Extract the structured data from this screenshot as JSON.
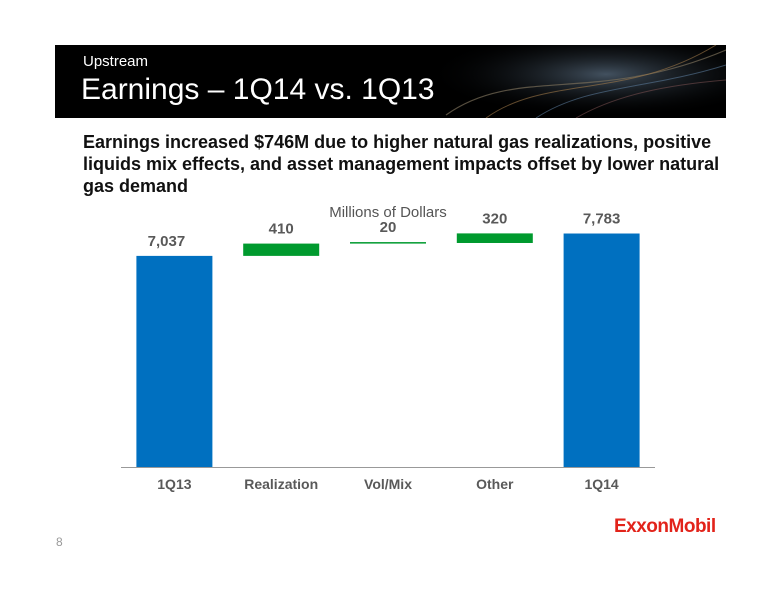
{
  "header": {
    "kicker": "Upstream",
    "title": "Earnings – 1Q14 vs. 1Q13"
  },
  "subtitle": "Earnings increased $746M due to higher natural gas realizations, positive liquids mix effects, and asset management impacts offset by lower natural gas demand",
  "page_number": "8",
  "logo_text": "ExxonMobil",
  "colors": {
    "total_bar": "#0070c0",
    "change_bar": "#009a2e",
    "axis": "#999999",
    "label_text": "#595959",
    "logo": "#e2231a"
  },
  "chart_data": {
    "type": "bar",
    "subtype": "waterfall",
    "units_label": "Millions of Dollars",
    "categories": [
      "1Q13",
      "Realization",
      "Vol/Mix",
      "Other",
      "1Q14"
    ],
    "values": [
      7037,
      410,
      20,
      320,
      7783
    ],
    "labels": [
      "7,037",
      "410",
      "20",
      "320",
      "7,783"
    ],
    "kinds": [
      "total",
      "increase",
      "increase",
      "increase",
      "total"
    ],
    "ylim": [
      0,
      8400
    ],
    "grid": false,
    "legend": "none"
  }
}
